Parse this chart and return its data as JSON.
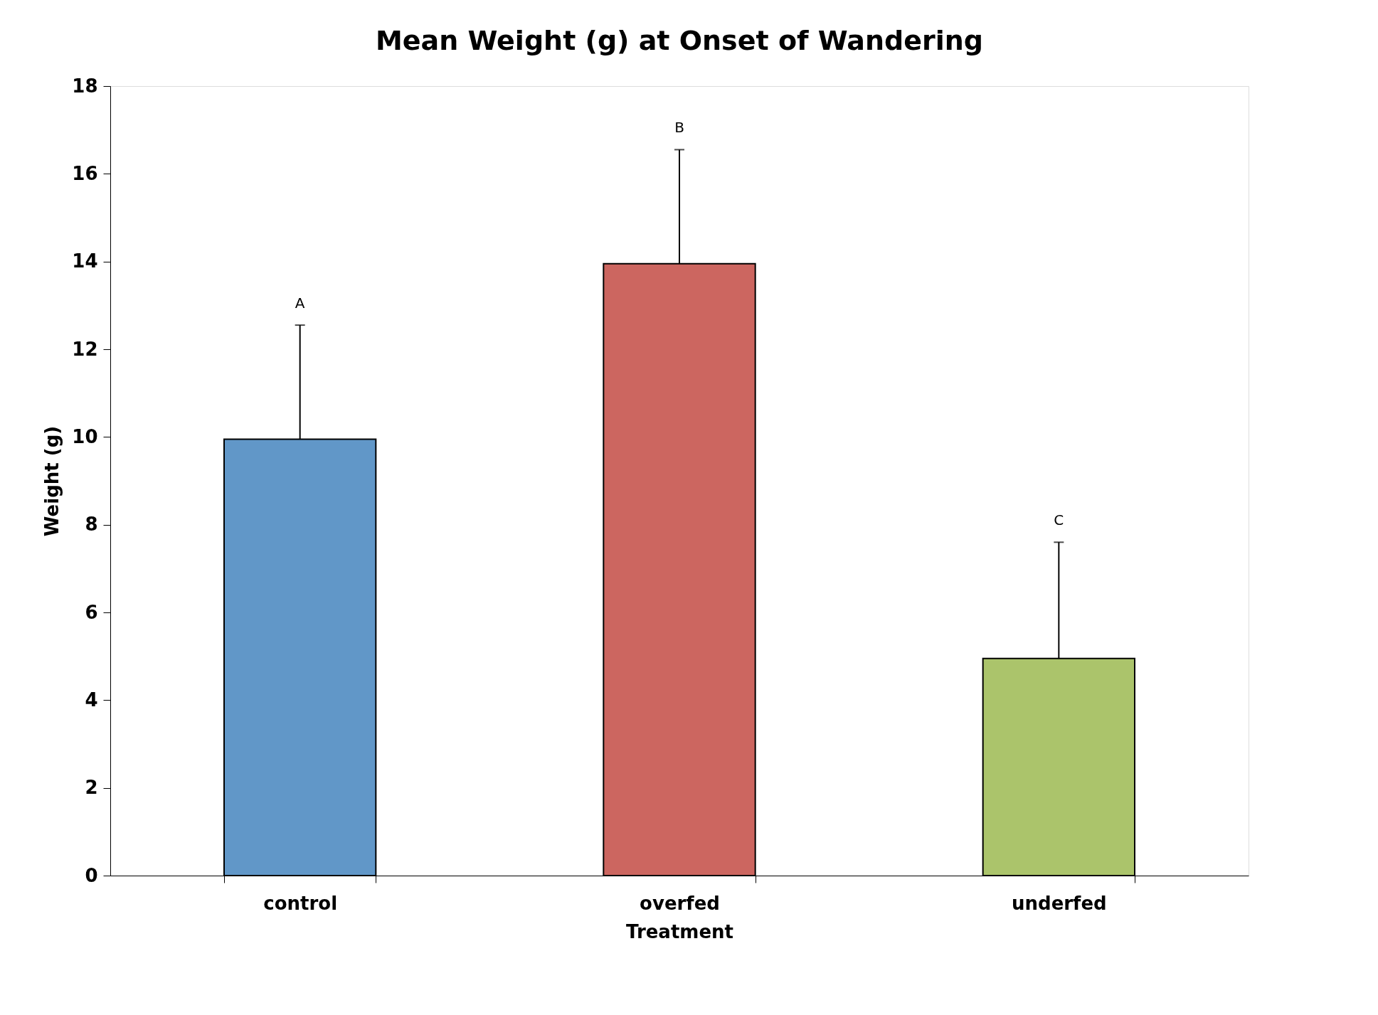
{
  "chart_data": {
    "type": "bar",
    "title": "Mean Weight (g) at Onset of Wandering",
    "xlabel": "Treatment",
    "ylabel": "Weight (g)",
    "categories": [
      "control",
      "overfed",
      "underfed"
    ],
    "values": [
      9.95,
      13.95,
      4.95
    ],
    "colors": [
      "#6197c8",
      "#cc6660",
      "#abc46b"
    ],
    "errors": [
      [
        9.95,
        12.55
      ],
      [
        13.95,
        16.55
      ],
      [
        4.95,
        7.6
      ]
    ],
    "ylim": [
      0,
      18
    ],
    "yticks": [
      0,
      2,
      4,
      6,
      8,
      10,
      12,
      14,
      16,
      18
    ],
    "grid": false,
    "annotations": [
      "A",
      "B",
      "C"
    ]
  }
}
